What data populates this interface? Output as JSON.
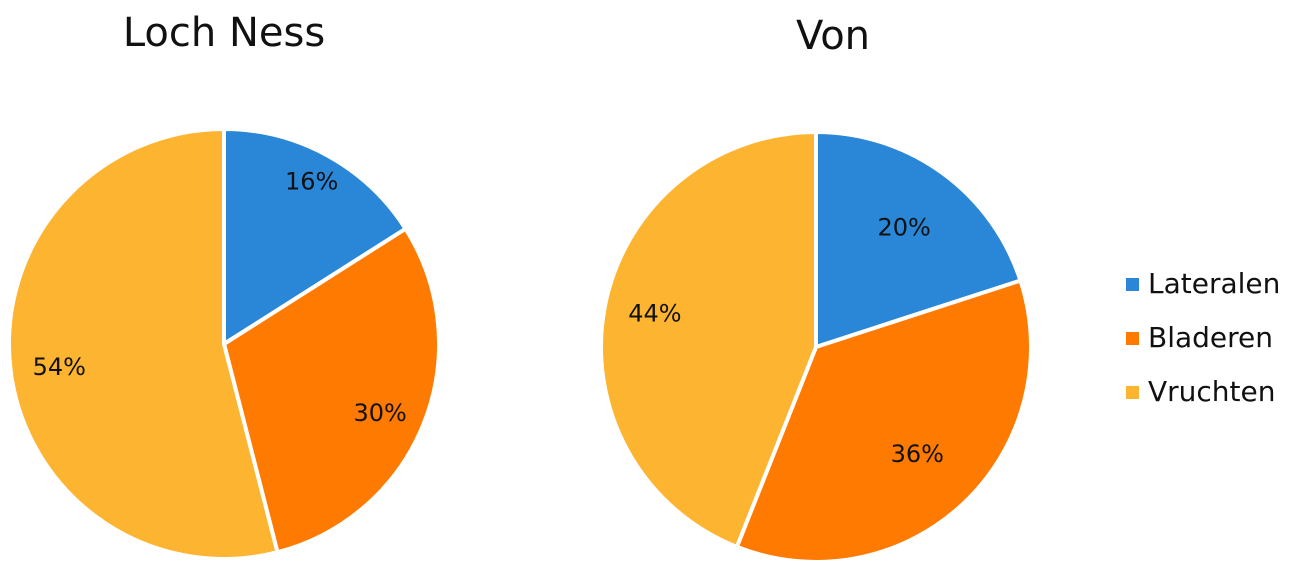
{
  "chart_data": [
    {
      "type": "pie",
      "title": "Loch Ness",
      "categories": [
        "Lateralen",
        "Bladeren",
        "Vruchten"
      ],
      "values": [
        16,
        30,
        54
      ],
      "labels": [
        "16%",
        "30%",
        "54%"
      ]
    },
    {
      "type": "pie",
      "title": "Von",
      "categories": [
        "Lateralen",
        "Bladeren",
        "Vruchten"
      ],
      "values": [
        20,
        36,
        44
      ],
      "labels": [
        "20%",
        "36%",
        "44%"
      ]
    }
  ],
  "legend": {
    "placement": "right",
    "items": [
      {
        "label": "Lateralen",
        "color": "#2a86d6"
      },
      {
        "label": "Bladeren",
        "color": "#ff7a00"
      },
      {
        "label": "Vruchten",
        "color": "#fdb431"
      }
    ]
  }
}
